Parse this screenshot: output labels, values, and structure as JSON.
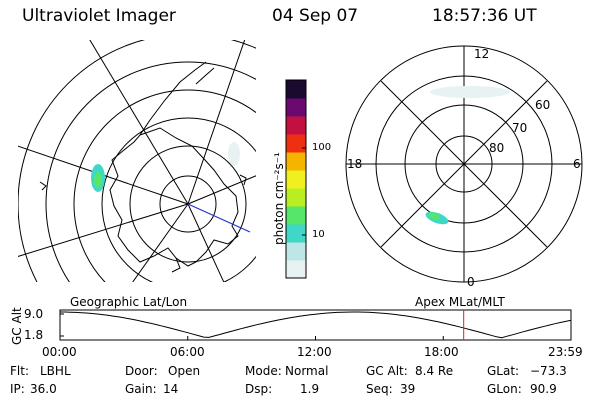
{
  "header": {
    "title": "Ultraviolet Imager",
    "date": "04 Sep 07",
    "time": "18:57:36 UT"
  },
  "left_panel": {
    "label": "Geographic Lat/Lon"
  },
  "right_panel": {
    "label": "Apex MLat/MLT",
    "mlt_labels": {
      "top": "12",
      "left": "18",
      "right": "6",
      "bottom": "0"
    },
    "lat_labels": [
      "60",
      "70",
      "80"
    ]
  },
  "colorbar": {
    "unit_label": "photon cm⁻²s⁻¹",
    "ticks": [
      "100",
      "10"
    ],
    "scale": "log",
    "colors": [
      "#e8f2f2",
      "#bfe6e6",
      "#3fd8c8",
      "#55e66a",
      "#b8ee22",
      "#f0f020",
      "#f5b400",
      "#ee3010",
      "#c21040",
      "#6a0a70",
      "#1a0a30"
    ]
  },
  "timeline": {
    "y_label": "GC Alt",
    "y_ticks": [
      "9.0",
      "1.8"
    ],
    "x_ticks": [
      "00:00",
      "06:00",
      "12:00",
      "18:00",
      "23:59"
    ],
    "current_time_hours": 18.96,
    "marker_color": "#dd2222"
  },
  "status": {
    "flt_label": "Flt:",
    "flt_value": "LBHL",
    "ip_label": "IP:",
    "ip_value": "36.0",
    "door_label": "Door:",
    "door_value": "Open",
    "gain_label": "Gain:",
    "gain_value": "14",
    "mode_label": "Mode:",
    "mode_value": "Normal",
    "dsp_label": "Dsp:",
    "dsp_value": "1.9",
    "gcalt_label": "GC Alt:",
    "gcalt_value": "8.4 Re",
    "seq_label": "Seq:",
    "seq_value": "39",
    "glat_label": "GLat:",
    "glat_value": "−73.3",
    "glon_label": "GLon:",
    "glon_value": "90.9"
  }
}
